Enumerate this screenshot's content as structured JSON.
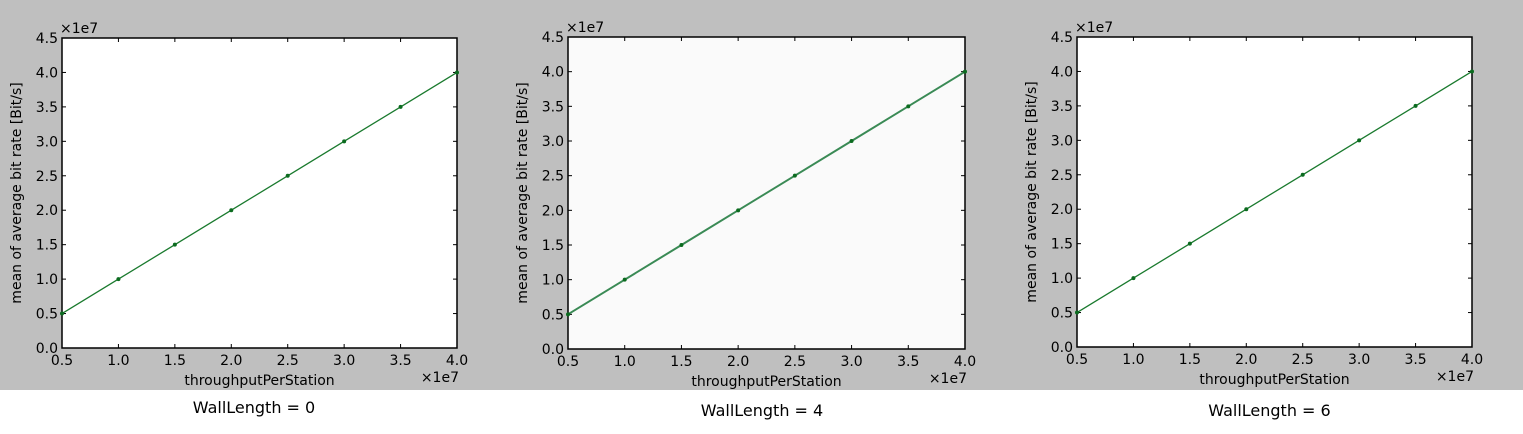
{
  "chart_data": [
    {
      "type": "line",
      "x": [
        5000000,
        10000000,
        15000000,
        20000000,
        25000000,
        30000000,
        35000000,
        40000000
      ],
      "series": [
        {
          "values": [
            5000000,
            10000000,
            15000000,
            20000000,
            25000000,
            30000000,
            35000000,
            40000000
          ],
          "color": "#1a7a2e"
        }
      ],
      "xlabel": "throughputPerStation",
      "ylabel": "mean of average bit rate [Bit/s]",
      "xlim": [
        5000000,
        40000000
      ],
      "ylim": [
        0,
        45000000
      ],
      "x_offset_label": "×1e7",
      "y_offset_label": "×1e7",
      "xticks": [
        "0.5",
        "1.0",
        "1.5",
        "2.0",
        "2.5",
        "3.0",
        "3.5",
        "4.0"
      ],
      "yticks": [
        "0.0",
        "0.5",
        "1.0",
        "1.5",
        "2.0",
        "2.5",
        "3.0",
        "3.5",
        "4.0",
        "4.5"
      ],
      "caption": "WallLength = 0",
      "grid": false
    },
    {
      "type": "line",
      "x": [
        5000000,
        10000000,
        15000000,
        20000000,
        25000000,
        30000000,
        35000000,
        40000000
      ],
      "series": [
        {
          "values": [
            5000000,
            10000000,
            15000000,
            20000000,
            25000000,
            30000000,
            35000000,
            40000000
          ],
          "color": "#3a8a55"
        }
      ],
      "xlabel": "throughputPerStation",
      "ylabel": "mean of average bit rate [Bit/s]",
      "xlim": [
        5000000,
        40000000
      ],
      "ylim": [
        0,
        45000000
      ],
      "x_offset_label": "×1e7",
      "y_offset_label": "×1e7",
      "xticks": [
        "0.5",
        "1.0",
        "1.5",
        "2.0",
        "2.5",
        "3.0",
        "3.5",
        "4.0"
      ],
      "yticks": [
        "0.0",
        "0.5",
        "1.0",
        "1.5",
        "2.0",
        "2.5",
        "3.0",
        "3.5",
        "4.0",
        "4.5"
      ],
      "caption": "WallLength = 4",
      "grid": false
    },
    {
      "type": "line",
      "x": [
        5000000,
        10000000,
        15000000,
        20000000,
        25000000,
        30000000,
        35000000,
        40000000
      ],
      "series": [
        {
          "values": [
            5000000,
            10000000,
            15000000,
            20000000,
            25000000,
            30000000,
            35000000,
            40000000
          ],
          "color": "#1a7a2e"
        }
      ],
      "xlabel": "throughputPerStation",
      "ylabel": "mean of average bit rate [Bit/s]",
      "xlim": [
        5000000,
        40000000
      ],
      "ylim": [
        0,
        45000000
      ],
      "x_offset_label": "×1e7",
      "y_offset_label": "×1e7",
      "xticks": [
        "0.5",
        "1.0",
        "1.5",
        "2.0",
        "2.5",
        "3.0",
        "3.5",
        "4.0"
      ],
      "yticks": [
        "0.0",
        "0.5",
        "1.0",
        "1.5",
        "2.0",
        "2.5",
        "3.0",
        "3.5",
        "4.0",
        "4.5"
      ],
      "caption": "WallLength = 6",
      "grid": false
    }
  ]
}
